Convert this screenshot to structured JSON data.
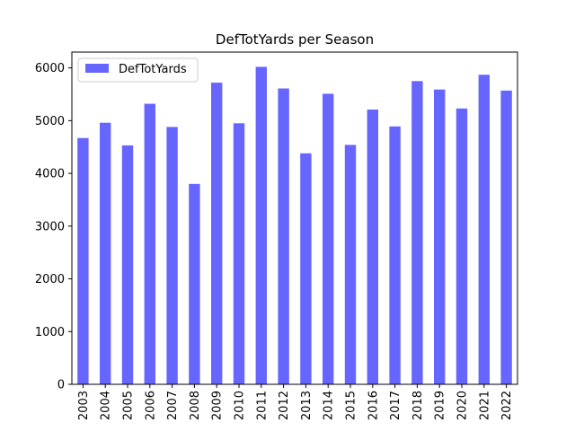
{
  "chart_data": {
    "type": "bar",
    "title": "DefTotYards per Season",
    "xlabel": "",
    "ylabel": "",
    "categories": [
      "2003",
      "2004",
      "2005",
      "2006",
      "2007",
      "2008",
      "2009",
      "2010",
      "2011",
      "2012",
      "2013",
      "2014",
      "2015",
      "2016",
      "2017",
      "2018",
      "2019",
      "2020",
      "2021",
      "2022"
    ],
    "series": [
      {
        "name": "DefTotYards",
        "values": [
          4670,
          4960,
          4530,
          5320,
          4880,
          3800,
          5720,
          4950,
          6020,
          5610,
          4380,
          5510,
          4540,
          5210,
          4890,
          5750,
          5590,
          5230,
          5870,
          5570
        ],
        "color": "#6666ff"
      }
    ],
    "ylim": [
      0,
      6300
    ],
    "yticks": [
      0,
      1000,
      2000,
      3000,
      4000,
      5000,
      6000
    ],
    "grid": false,
    "legend": "top-left"
  }
}
